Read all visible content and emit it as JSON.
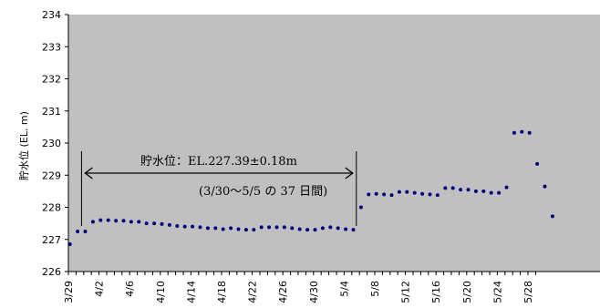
{
  "chart_data": {
    "type": "scatter",
    "title": "",
    "xlabel": "",
    "ylabel": "貯水位 (EL. m)",
    "ylim": [
      226,
      234
    ],
    "yticks": [
      226,
      227,
      228,
      229,
      230,
      231,
      232,
      233,
      234
    ],
    "xlim_days": [
      0,
      61
    ],
    "xtick_labels": [
      "3/29",
      "4/2",
      "4/6",
      "4/10",
      "4/14",
      "4/18",
      "4/22",
      "4/26",
      "4/30",
      "5/4",
      "5/8",
      "5/12",
      "5/16",
      "5/20",
      "5/24",
      "5/28"
    ],
    "grid": false,
    "plot_background": "#c0c0c0",
    "marker_color": "#000080",
    "series": [
      {
        "x": [
          "3/29",
          "3/30",
          "3/31",
          "4/1",
          "4/2",
          "4/3",
          "4/4",
          "4/5",
          "4/6",
          "4/7",
          "4/8",
          "4/9",
          "4/10",
          "4/11",
          "4/12",
          "4/13",
          "4/14",
          "4/15",
          "4/16",
          "4/17",
          "4/18",
          "4/19",
          "4/20",
          "4/21",
          "4/22",
          "4/23",
          "4/24",
          "4/25",
          "4/26",
          "4/27",
          "4/28",
          "4/29",
          "4/30",
          "5/1",
          "5/2",
          "5/3",
          "5/4",
          "5/5",
          "5/6",
          "5/7",
          "5/8",
          "5/9",
          "5/10",
          "5/11",
          "5/12",
          "5/13",
          "5/14",
          "5/15",
          "5/16",
          "5/17",
          "5/18",
          "5/19",
          "5/20",
          "5/21",
          "5/22",
          "5/23",
          "5/24",
          "5/25",
          "5/26",
          "5/27",
          "5/28",
          "5/29",
          "5/30",
          "5/31"
        ],
        "values": [
          226.85,
          227.25,
          227.25,
          227.55,
          227.6,
          227.6,
          227.58,
          227.58,
          227.55,
          227.55,
          227.5,
          227.5,
          227.48,
          227.45,
          227.42,
          227.4,
          227.4,
          227.38,
          227.35,
          227.35,
          227.32,
          227.35,
          227.32,
          227.3,
          227.3,
          227.38,
          227.38,
          227.38,
          227.38,
          227.35,
          227.32,
          227.3,
          227.3,
          227.35,
          227.38,
          227.35,
          227.32,
          227.3,
          228.0,
          228.4,
          228.42,
          228.4,
          228.38,
          228.48,
          228.48,
          228.45,
          228.42,
          228.4,
          228.38,
          228.6,
          228.6,
          228.55,
          228.55,
          228.5,
          228.5,
          228.45,
          228.45,
          228.62,
          230.32,
          230.35,
          230.32,
          229.35,
          228.65,
          227.72
        ]
      }
    ],
    "annotations": {
      "bracket_label": "貯水位：EL.227.39±0.18m",
      "period_label": "(3/30～5/5 の 37 日間)",
      "bracket_start": "3/30",
      "bracket_end": "5/5"
    }
  }
}
